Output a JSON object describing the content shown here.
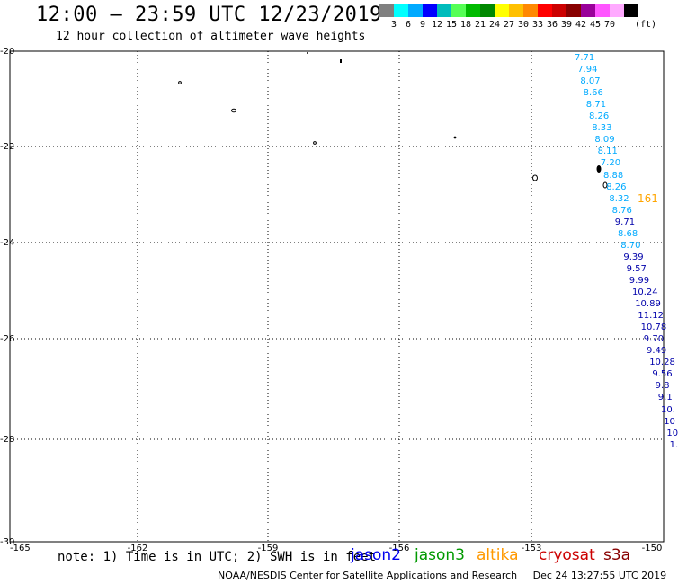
{
  "header": {
    "title": "12:00 – 23:59 UTC 12/23/2019",
    "subtitle": "12 hour collection of altimeter wave heights"
  },
  "color_scale": {
    "unit": "(ft)",
    "colors": [
      "#808080",
      "#00ffff",
      "#00aaff",
      "#0000ff",
      "#00bcbc",
      "#55ff55",
      "#00bb00",
      "#008800",
      "#ffff00",
      "#ffc000",
      "#ff8800",
      "#ff0000",
      "#cc0000",
      "#880000",
      "#990099",
      "#ff55ff",
      "#ffaaff",
      "#000000"
    ],
    "labels": [
      "3",
      "6",
      "9",
      "12",
      "15",
      "18",
      "21",
      "24",
      "27",
      "30",
      "33",
      "36",
      "39",
      "42",
      "45",
      "70"
    ]
  },
  "map": {
    "lat_labels": [
      "-20",
      "-22",
      "-24",
      "-26",
      "-28",
      "-30"
    ],
    "lon_labels": [
      "-165",
      "-162",
      "-159",
      "-156",
      "-153",
      "-150"
    ],
    "labels_cyan": [
      "7.71",
      "7.94",
      "8.07",
      "8.66",
      "8.71",
      "8.26",
      "8.33",
      "8.09",
      "8.11",
      "7.20",
      "8.88",
      "8.26",
      "8.32",
      "8.76"
    ],
    "labels_mixed": [
      {
        "text": "9.71",
        "color": "#0000aa"
      },
      {
        "text": "8.68",
        "color": "#00aaff"
      },
      {
        "text": "8.70",
        "color": "#00aaff"
      }
    ],
    "labels_blue": [
      "9.39",
      "9.57",
      "9.99",
      "10.24",
      "10.89",
      "11.12",
      "10.78",
      "9.70",
      "9.49",
      "10.28",
      "9.56",
      "9.8",
      "9.1",
      "10.",
      "10",
      "10",
      "1."
    ],
    "orange_label": "161",
    "colors": {
      "cyan": "#00aaff",
      "blue": "#0000aa",
      "orange": "#ffa500"
    }
  },
  "footer": {
    "note": "note: 1) Time is in UTC; 2) SWH is in feet",
    "satellites": [
      {
        "name": "jason2",
        "color": "#0000ee"
      },
      {
        "name": "jason3",
        "color": "#009900"
      },
      {
        "name": "altika",
        "color": "#ff9900"
      },
      {
        "name": "cryosat",
        "color": "#cc0000"
      },
      {
        "name": "s3a",
        "color": "#880000"
      }
    ],
    "credit": "NOAA/NESDIS Center for Satellite Applications and Research",
    "timestamp": "Dec 24 13:27:55 UTC 2019"
  }
}
